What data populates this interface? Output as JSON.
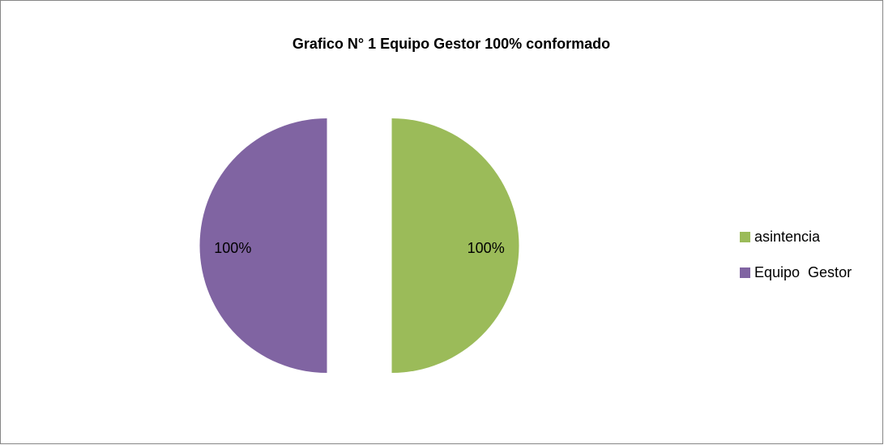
{
  "chart_data": {
    "type": "pie",
    "title": "Grafico N° 1 Equipo Gestor 100% conformado",
    "categories": [
      "asintencia",
      "Equipo  Gestor"
    ],
    "values": [
      100,
      100
    ],
    "value_labels": [
      "100%",
      "100%"
    ],
    "colors": [
      "#9bbb59",
      "#8064a2"
    ],
    "legend": "right"
  }
}
